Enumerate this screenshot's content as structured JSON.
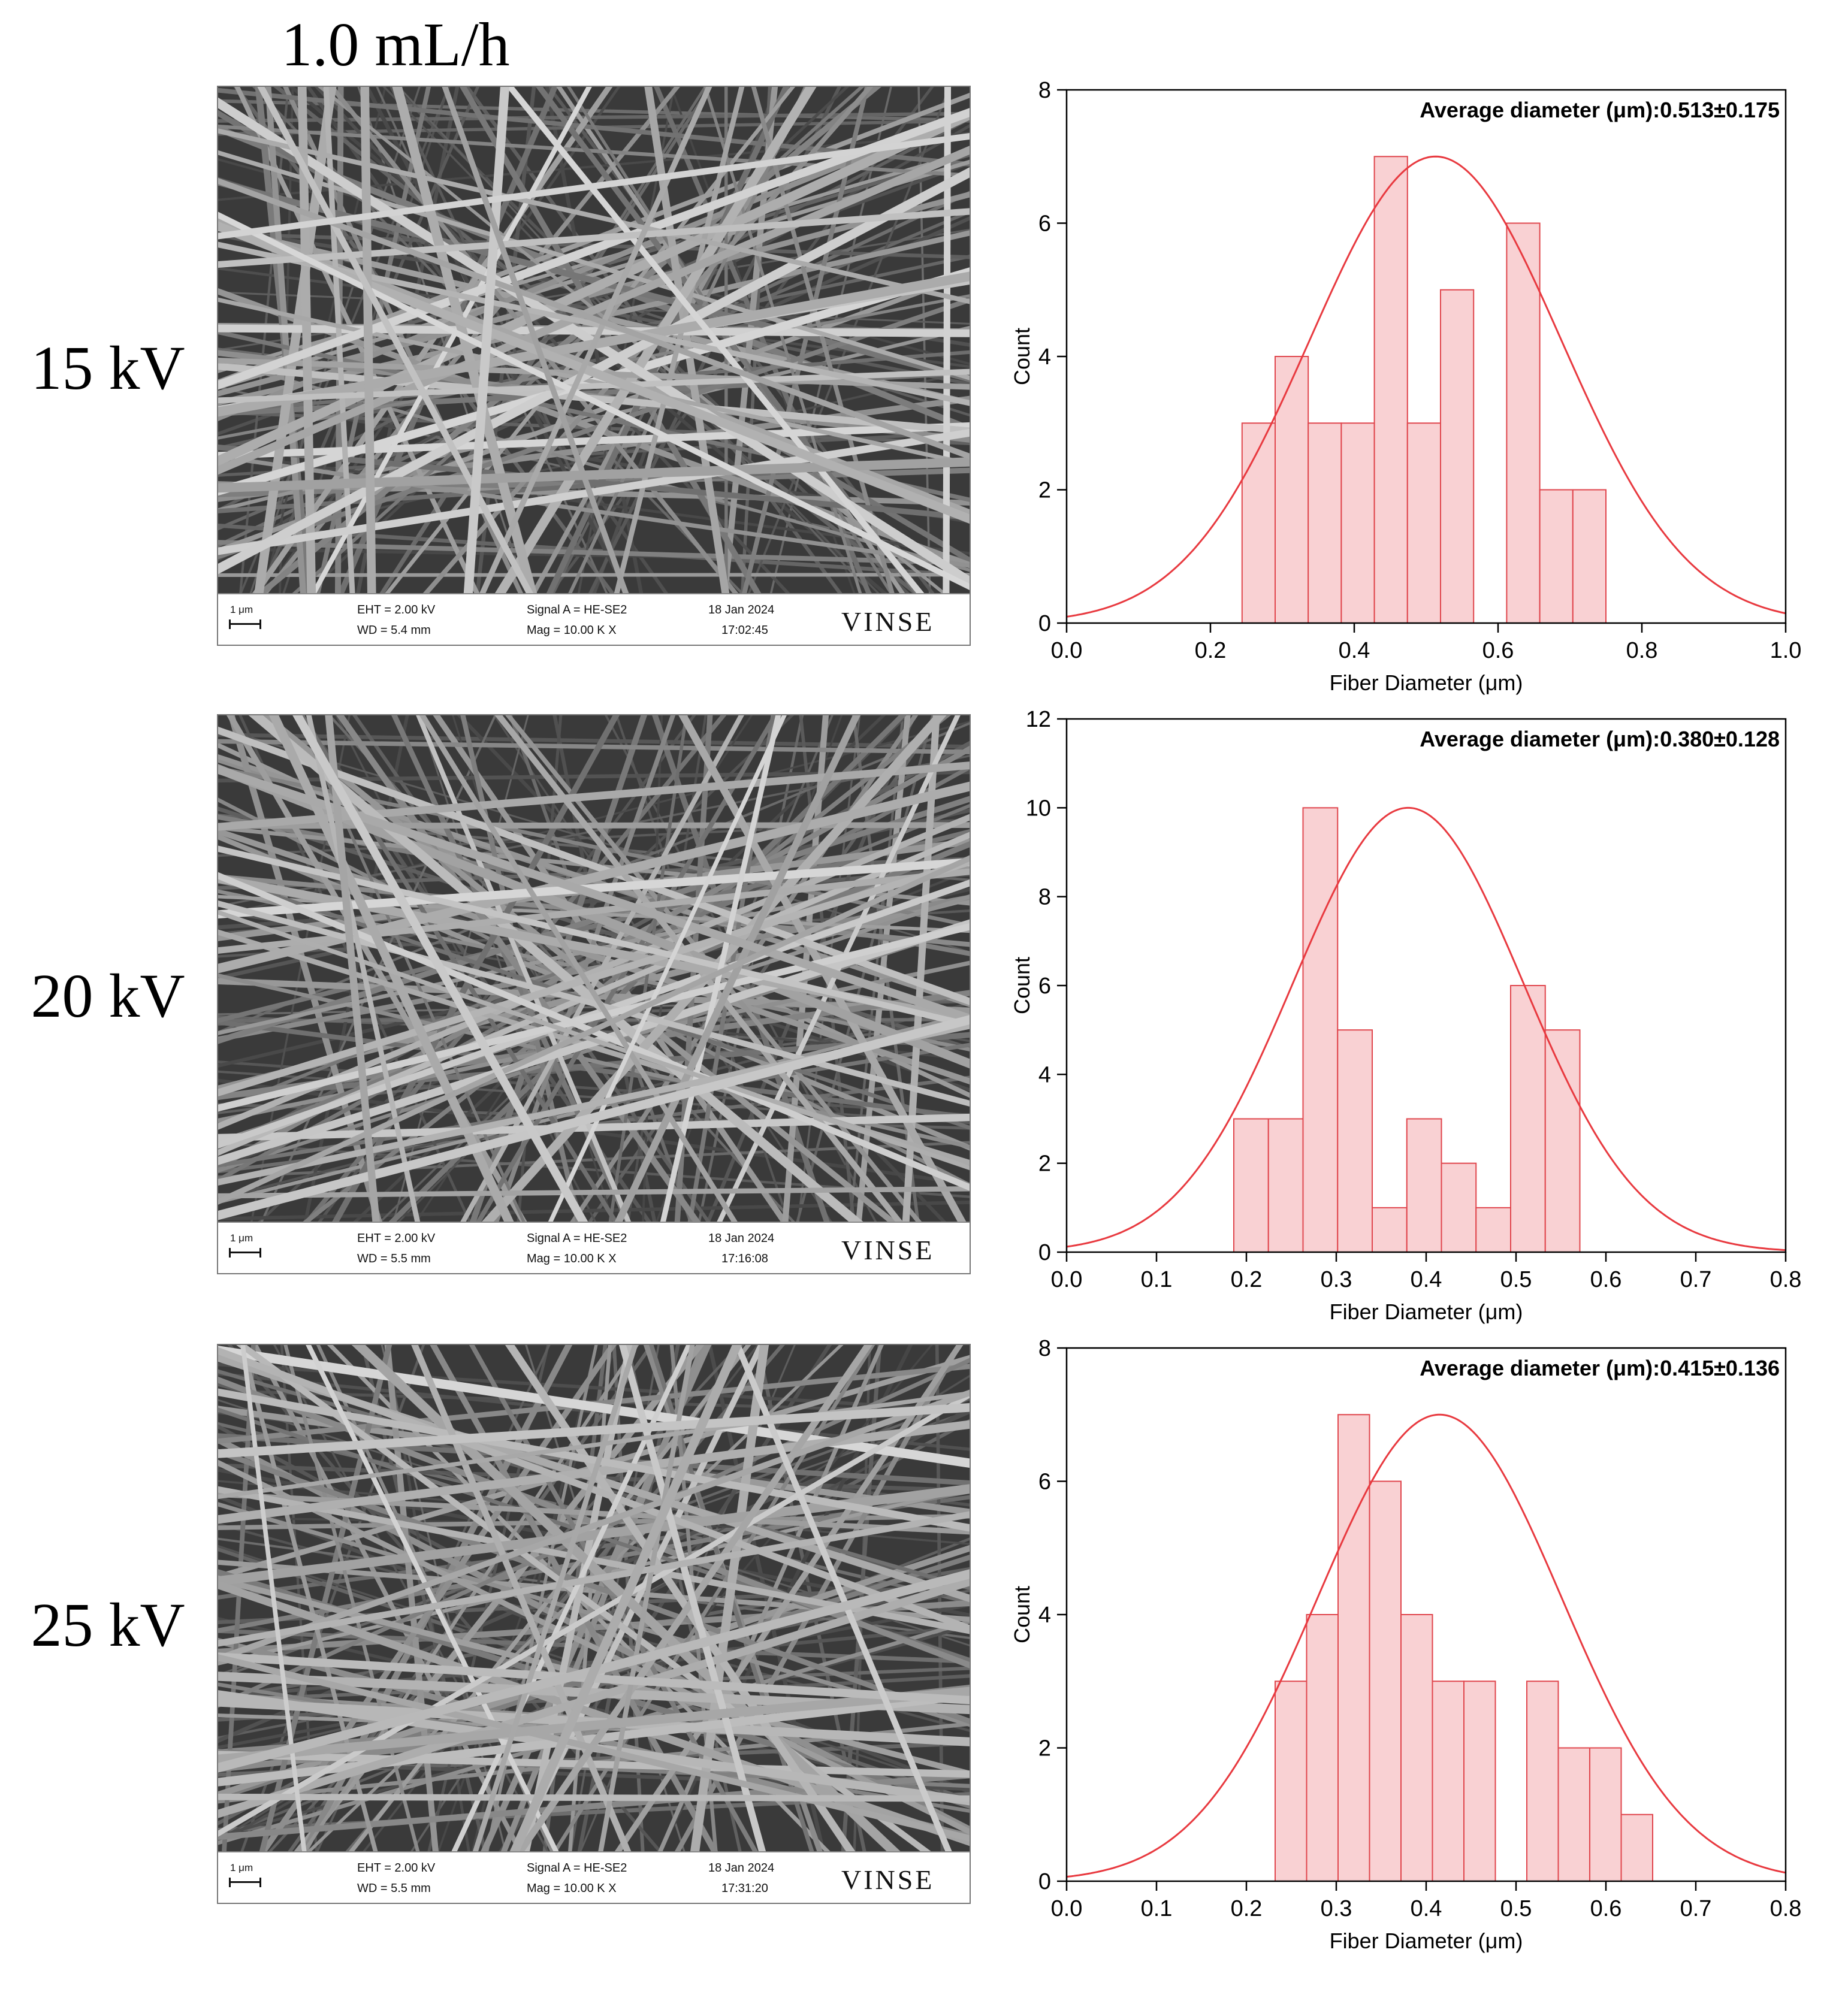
{
  "heading": "1.0 mL/h",
  "panels": [
    {
      "row_label": "15 kV",
      "sem": {
        "scale": "1 μm",
        "eht": "EHT =  2.00 kV",
        "wd": "WD =  5.4 mm",
        "signal": "Signal A = HE-SE2",
        "mag": "Mag =   10.00 K X",
        "date": "18 Jan 2024",
        "time": "17:02:45",
        "logo": "VINSE"
      }
    },
    {
      "row_label": "20 kV",
      "sem": {
        "scale": "1 μm",
        "eht": "EHT =  2.00 kV",
        "wd": "WD =  5.5 mm",
        "signal": "Signal A = HE-SE2",
        "mag": "Mag =   10.00 K X",
        "date": "18 Jan 2024",
        "time": "17:16:08",
        "logo": "VINSE"
      }
    },
    {
      "row_label": "25 kV",
      "sem": {
        "scale": "1 μm",
        "eht": "EHT =  2.00 kV",
        "wd": "WD =  5.5 mm",
        "signal": "Signal A = HE-SE2",
        "mag": "Mag =   10.00 K X",
        "date": "18 Jan 2024",
        "time": "17:31:20",
        "logo": "VINSE"
      }
    }
  ],
  "colors": {
    "bar_fill": "#f9d1d3",
    "bar_stroke": "#e0464d",
    "curve": "#e8393f",
    "axis": "#000000"
  },
  "chart_data": [
    {
      "type": "bar",
      "annotation": "Average diameter (μm):0.513±0.175",
      "xlabel": "Fiber Diameter (μm)",
      "ylabel": "Count",
      "xlim": [
        0,
        1.0
      ],
      "ylim": [
        0,
        8
      ],
      "xticks": [
        "0.0",
        "0.2",
        "0.4",
        "0.6",
        "0.8",
        "1.0"
      ],
      "yticks": [
        "0",
        "2",
        "4",
        "6",
        "8"
      ],
      "bins": [
        {
          "x0": 0.244,
          "x1": 0.29,
          "count": 3
        },
        {
          "x0": 0.29,
          "x1": 0.336,
          "count": 4
        },
        {
          "x0": 0.336,
          "x1": 0.382,
          "count": 3
        },
        {
          "x0": 0.382,
          "x1": 0.428,
          "count": 3
        },
        {
          "x0": 0.428,
          "x1": 0.474,
          "count": 7
        },
        {
          "x0": 0.474,
          "x1": 0.52,
          "count": 3
        },
        {
          "x0": 0.52,
          "x1": 0.566,
          "count": 5
        },
        {
          "x0": 0.566,
          "x1": 0.612,
          "count": 0
        },
        {
          "x0": 0.612,
          "x1": 0.658,
          "count": 6
        },
        {
          "x0": 0.658,
          "x1": 0.704,
          "count": 2
        },
        {
          "x0": 0.704,
          "x1": 0.75,
          "count": 2
        }
      ],
      "fit": {
        "kind": "normal",
        "mean": 0.513,
        "sd": 0.175,
        "peak": 7
      }
    },
    {
      "type": "bar",
      "annotation": "Average diameter (μm):0.380±0.128",
      "xlabel": "Fiber Diameter (μm)",
      "ylabel": "Count",
      "xlim": [
        0,
        0.8
      ],
      "ylim": [
        0,
        12
      ],
      "xticks": [
        "0.0",
        "0.1",
        "0.2",
        "0.3",
        "0.4",
        "0.5",
        "0.6",
        "0.7",
        "0.8"
      ],
      "yticks": [
        "0",
        "2",
        "4",
        "6",
        "8",
        "10",
        "12"
      ],
      "bins": [
        {
          "x0": 0.186,
          "x1": 0.2245,
          "count": 3
        },
        {
          "x0": 0.2245,
          "x1": 0.263,
          "count": 3
        },
        {
          "x0": 0.263,
          "x1": 0.3015,
          "count": 10
        },
        {
          "x0": 0.3015,
          "x1": 0.34,
          "count": 5
        },
        {
          "x0": 0.34,
          "x1": 0.3785,
          "count": 1
        },
        {
          "x0": 0.3785,
          "x1": 0.417,
          "count": 3
        },
        {
          "x0": 0.417,
          "x1": 0.4555,
          "count": 2
        },
        {
          "x0": 0.4555,
          "x1": 0.494,
          "count": 1
        },
        {
          "x0": 0.494,
          "x1": 0.5325,
          "count": 6
        },
        {
          "x0": 0.5325,
          "x1": 0.571,
          "count": 5
        }
      ],
      "fit": {
        "kind": "normal",
        "mean": 0.38,
        "sd": 0.128,
        "peak": 10
      }
    },
    {
      "type": "bar",
      "annotation": "Average diameter (μm):0.415±0.136",
      "xlabel": "Fiber Diameter (μm)",
      "ylabel": "Count",
      "xlim": [
        0,
        0.8
      ],
      "ylim": [
        0,
        8
      ],
      "xticks": [
        "0.0",
        "0.1",
        "0.2",
        "0.3",
        "0.4",
        "0.5",
        "0.6",
        "0.7",
        "0.8"
      ],
      "yticks": [
        "0",
        "2",
        "4",
        "6",
        "8"
      ],
      "bins": [
        {
          "x0": 0.232,
          "x1": 0.267,
          "count": 3
        },
        {
          "x0": 0.267,
          "x1": 0.302,
          "count": 4
        },
        {
          "x0": 0.302,
          "x1": 0.337,
          "count": 7
        },
        {
          "x0": 0.337,
          "x1": 0.372,
          "count": 6
        },
        {
          "x0": 0.372,
          "x1": 0.407,
          "count": 4
        },
        {
          "x0": 0.407,
          "x1": 0.442,
          "count": 3
        },
        {
          "x0": 0.442,
          "x1": 0.477,
          "count": 3
        },
        {
          "x0": 0.477,
          "x1": 0.512,
          "count": 0
        },
        {
          "x0": 0.512,
          "x1": 0.547,
          "count": 3
        },
        {
          "x0": 0.547,
          "x1": 0.582,
          "count": 2
        },
        {
          "x0": 0.582,
          "x1": 0.617,
          "count": 2
        },
        {
          "x0": 0.617,
          "x1": 0.652,
          "count": 1
        }
      ],
      "fit": {
        "kind": "normal",
        "mean": 0.415,
        "sd": 0.136,
        "peak": 7
      }
    }
  ]
}
